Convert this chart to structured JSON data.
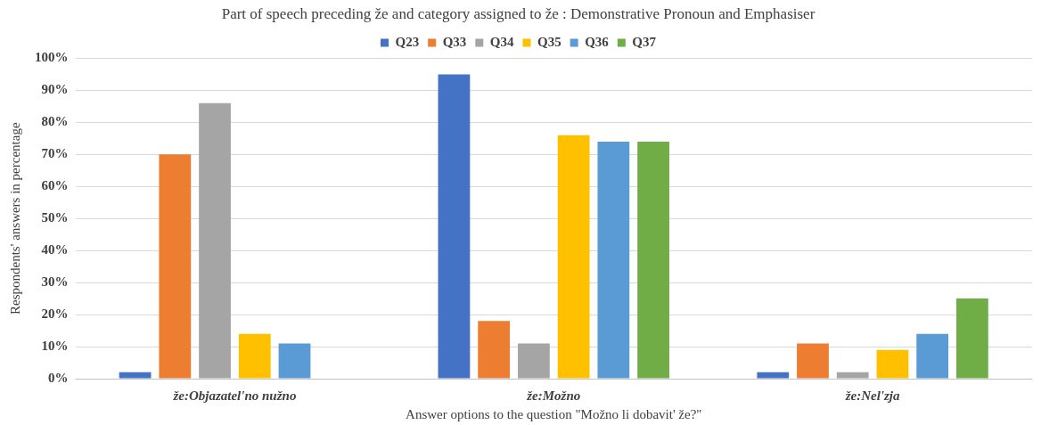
{
  "chart_data": {
    "type": "bar",
    "title": "Part of speech preceding že and category assigned to že : Demonstrative Pronoun and Emphasiser",
    "xlabel": "Answer options to the question \"Možno li dobavit' že?\"",
    "ylabel": "Respondents' answers in percentage",
    "categories": [
      "že:Objazatel'no nužno",
      "že:Možno",
      "že:Nel'zja"
    ],
    "series": [
      {
        "name": "Q23",
        "color": "#4472c4",
        "values": [
          2,
          95,
          2
        ]
      },
      {
        "name": "Q33",
        "color": "#ed7d31",
        "values": [
          70,
          18,
          11
        ]
      },
      {
        "name": "Q34",
        "color": "#a5a5a5",
        "values": [
          86,
          11,
          2
        ]
      },
      {
        "name": "Q35",
        "color": "#ffc000",
        "values": [
          14,
          76,
          9
        ]
      },
      {
        "name": "Q36",
        "color": "#5b9bd5",
        "values": [
          11,
          74,
          14
        ]
      },
      {
        "name": "Q37",
        "color": "#70ad47",
        "values": [
          0,
          74,
          25
        ]
      }
    ],
    "ylim": [
      0,
      100
    ],
    "yticks": [
      {
        "value": 0,
        "label": "0%"
      },
      {
        "value": 10,
        "label": "10%"
      },
      {
        "value": 20,
        "label": "20%"
      },
      {
        "value": 30,
        "label": "30%"
      },
      {
        "value": 40,
        "label": "40%"
      },
      {
        "value": 50,
        "label": "50%"
      },
      {
        "value": 60,
        "label": "60%"
      },
      {
        "value": 70,
        "label": "70%"
      },
      {
        "value": 80,
        "label": "80%"
      },
      {
        "value": 90,
        "label": "90%"
      },
      {
        "value": 100,
        "label": "100%"
      }
    ],
    "grid": "y",
    "legend": "top"
  }
}
